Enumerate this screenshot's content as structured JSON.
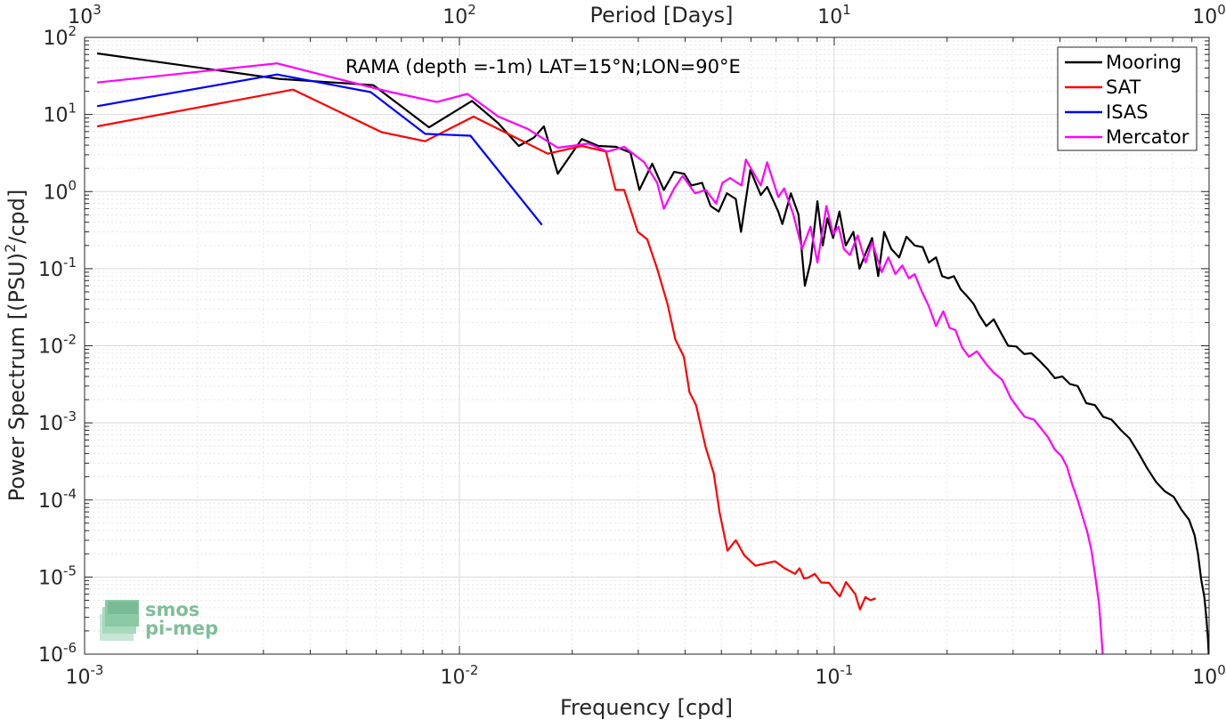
{
  "chart_data": {
    "type": "line",
    "annotation": "RAMA (depth =-1m) LAT=15°N;LON=90°E",
    "xlabel": "Frequency [cpd]",
    "ylabel": "Power Spectrum [(PSU)",
    "ylabel_sup": "2",
    "ylabel_tail": "/cpd]",
    "top_xlabel": "Period [Days]",
    "xscale": "log",
    "yscale": "log",
    "xlim": [
      0.001,
      1
    ],
    "ylim": [
      1e-06,
      100
    ],
    "grid": true,
    "minor_grid": true,
    "legend_position": "top-right",
    "x_ticks": [
      {
        "value": 0.001,
        "base": "10",
        "exp": "-3"
      },
      {
        "value": 0.01,
        "base": "10",
        "exp": "-2"
      },
      {
        "value": 0.1,
        "base": "10",
        "exp": "-1"
      },
      {
        "value": 1,
        "base": "10",
        "exp": "0"
      }
    ],
    "top_ticks": [
      {
        "freq": 0.001,
        "base": "10",
        "exp": "3"
      },
      {
        "freq": 0.01,
        "base": "10",
        "exp": "2"
      },
      {
        "freq": 0.1,
        "base": "10",
        "exp": "1"
      },
      {
        "freq": 1,
        "base": "10",
        "exp": "0"
      }
    ],
    "y_ticks": [
      {
        "value": 100,
        "base": "10",
        "exp": "2"
      },
      {
        "value": 10,
        "base": "10",
        "exp": "1"
      },
      {
        "value": 1,
        "base": "10",
        "exp": "0"
      },
      {
        "value": 0.1,
        "base": "10",
        "exp": "-1"
      },
      {
        "value": 0.01,
        "base": "10",
        "exp": "-2"
      },
      {
        "value": 0.001,
        "base": "10",
        "exp": "-3"
      },
      {
        "value": 0.0001,
        "base": "10",
        "exp": "-4"
      },
      {
        "value": 1e-05,
        "base": "10",
        "exp": "-5"
      },
      {
        "value": 1e-06,
        "base": "10",
        "exp": "-6"
      }
    ],
    "series": [
      {
        "name": "Mooring",
        "color": "#000000",
        "points": [
          [
            0.00108,
            62
          ],
          [
            0.0033,
            29
          ],
          [
            0.0059,
            24
          ],
          [
            0.0083,
            6.8
          ],
          [
            0.0108,
            15
          ],
          [
            0.0127,
            7.7
          ],
          [
            0.0144,
            3.9
          ],
          [
            0.0158,
            5
          ],
          [
            0.0168,
            7
          ],
          [
            0.0183,
            1.7
          ],
          [
            0.0212,
            4.8
          ],
          [
            0.0235,
            3.9
          ],
          [
            0.0262,
            3.8
          ],
          [
            0.0286,
            3.2
          ],
          [
            0.0302,
            1.05
          ],
          [
            0.0327,
            2.3
          ],
          [
            0.0351,
            1.05
          ],
          [
            0.0374,
            1.8
          ],
          [
            0.0398,
            1.7
          ],
          [
            0.0416,
            1.2
          ],
          [
            0.0444,
            1.3
          ],
          [
            0.0468,
            0.65
          ],
          [
            0.0492,
            0.55
          ],
          [
            0.0517,
            0.95
          ],
          [
            0.0546,
            0.8
          ],
          [
            0.0564,
            0.3
          ],
          [
            0.0597,
            1.9
          ],
          [
            0.0637,
            0.9
          ],
          [
            0.0662,
            1.15
          ],
          [
            0.0709,
            0.55
          ],
          [
            0.0727,
            0.38
          ],
          [
            0.0766,
            0.95
          ],
          [
            0.0803,
            0.5
          ],
          [
            0.0835,
            0.06
          ],
          [
            0.0864,
            0.12
          ],
          [
            0.0902,
            0.75
          ],
          [
            0.0932,
            0.2
          ],
          [
            0.0958,
            0.45
          ],
          [
            0.0993,
            0.25
          ],
          [
            0.1032,
            0.55
          ],
          [
            0.1073,
            0.2
          ],
          [
            0.1125,
            0.3
          ],
          [
            0.1168,
            0.1
          ],
          [
            0.1214,
            0.16
          ],
          [
            0.1262,
            0.25
          ],
          [
            0.131,
            0.08
          ],
          [
            0.1359,
            0.3
          ],
          [
            0.142,
            0.18
          ],
          [
            0.149,
            0.14
          ],
          [
            0.1558,
            0.26
          ],
          [
            0.1639,
            0.2
          ],
          [
            0.1721,
            0.19
          ],
          [
            0.1789,
            0.12
          ],
          [
            0.1869,
            0.14
          ],
          [
            0.194,
            0.08
          ],
          [
            0.2015,
            0.075
          ],
          [
            0.2086,
            0.08
          ],
          [
            0.2174,
            0.054
          ],
          [
            0.2262,
            0.044
          ],
          [
            0.2353,
            0.035
          ],
          [
            0.2438,
            0.025
          ],
          [
            0.2545,
            0.018
          ],
          [
            0.2663,
            0.022
          ],
          [
            0.2778,
            0.015
          ],
          [
            0.291,
            0.01
          ],
          [
            0.3061,
            0.0098
          ],
          [
            0.3213,
            0.0078
          ],
          [
            0.3357,
            0.008
          ],
          [
            0.3517,
            0.0065
          ],
          [
            0.3703,
            0.005
          ],
          [
            0.3878,
            0.0038
          ],
          [
            0.4061,
            0.004
          ],
          [
            0.4252,
            0.0032
          ],
          [
            0.4461,
            0.003
          ],
          [
            0.4704,
            0.0018
          ],
          [
            0.4956,
            0.0017
          ],
          [
            0.5219,
            0.0012
          ],
          [
            0.5494,
            0.0011
          ],
          [
            0.5826,
            0.0008
          ],
          [
            0.6132,
            0.00063
          ],
          [
            0.6476,
            0.00041
          ],
          [
            0.6832,
            0.00026
          ],
          [
            0.7227,
            0.00017
          ],
          [
            0.7616,
            0.00013
          ],
          [
            0.8044,
            0.00011
          ],
          [
            0.8434,
            7.5e-05
          ],
          [
            0.8849,
            5.5e-05
          ],
          [
            0.9146,
            3.5e-05
          ],
          [
            0.934,
            2e-05
          ],
          [
            0.9528,
            9.2e-06
          ],
          [
            0.9712,
            5.5e-06
          ],
          [
            0.9833,
            3e-06
          ],
          [
            0.9928,
            1.6e-06
          ],
          [
            0.998,
            1e-06
          ]
        ]
      },
      {
        "name": "SAT",
        "color": "#ff0000",
        "points": [
          [
            0.00108,
            7
          ],
          [
            0.0036,
            21
          ],
          [
            0.0062,
            5.9
          ],
          [
            0.0081,
            4.5
          ],
          [
            0.0109,
            9.4
          ],
          [
            0.0172,
            3.1
          ],
          [
            0.0212,
            3.9
          ],
          [
            0.0246,
            3.3
          ],
          [
            0.0261,
            1.05
          ],
          [
            0.0275,
            1.05
          ],
          [
            0.0299,
            0.3
          ],
          [
            0.0317,
            0.24
          ],
          [
            0.0337,
            0.1
          ],
          [
            0.0359,
            0.035
          ],
          [
            0.0377,
            0.012
          ],
          [
            0.0397,
            0.0072
          ],
          [
            0.0411,
            0.0025
          ],
          [
            0.0428,
            0.0017
          ],
          [
            0.0454,
            0.00048
          ],
          [
            0.0477,
            0.00022
          ],
          [
            0.0494,
            7e-05
          ],
          [
            0.0519,
            2.2e-05
          ],
          [
            0.0546,
            3e-05
          ],
          [
            0.0576,
            1.9e-05
          ],
          [
            0.0616,
            1.4e-05
          ],
          [
            0.0655,
            1.5e-05
          ],
          [
            0.0695,
            1.6e-05
          ],
          [
            0.0737,
            1.3e-05
          ],
          [
            0.0786,
            1.1e-05
          ],
          [
            0.0808,
            1.3e-05
          ],
          [
            0.083,
            9.6e-06
          ],
          [
            0.0852,
            9.8e-06
          ],
          [
            0.0887,
            1.1e-05
          ],
          [
            0.0923,
            8.5e-06
          ],
          [
            0.0968,
            8.4e-06
          ],
          [
            0.1002,
            6.7e-06
          ],
          [
            0.1035,
            5.6e-06
          ],
          [
            0.1075,
            8.6e-06
          ],
          [
            0.1105,
            7.2e-06
          ],
          [
            0.1138,
            6e-06
          ],
          [
            0.1171,
            3.8e-06
          ],
          [
            0.1211,
            5.5e-06
          ],
          [
            0.1249,
            5e-06
          ],
          [
            0.1289,
            5.3e-06
          ]
        ]
      },
      {
        "name": "ISAS",
        "color": "#0000ff",
        "points": [
          [
            0.00108,
            12.8
          ],
          [
            0.00326,
            33
          ],
          [
            0.0058,
            19.5
          ],
          [
            0.0081,
            5.6
          ],
          [
            0.0107,
            5.3
          ],
          [
            0.0166,
            0.37
          ]
        ]
      },
      {
        "name": "Mercator",
        "color": "#ff00ff",
        "points": [
          [
            0.00108,
            26
          ],
          [
            0.00326,
            46
          ],
          [
            0.0064,
            20
          ],
          [
            0.0087,
            14.5
          ],
          [
            0.0105,
            18.5
          ],
          [
            0.0127,
            9.4
          ],
          [
            0.0152,
            6.5
          ],
          [
            0.0183,
            3.7
          ],
          [
            0.0221,
            4.2
          ],
          [
            0.0248,
            3.3
          ],
          [
            0.0275,
            3.8
          ],
          [
            0.0311,
            2.4
          ],
          [
            0.0337,
            1.3
          ],
          [
            0.0351,
            0.6
          ],
          [
            0.0374,
            1.1
          ],
          [
            0.0394,
            1.6
          ],
          [
            0.0425,
            0.95
          ],
          [
            0.0454,
            1.05
          ],
          [
            0.0484,
            0.7
          ],
          [
            0.0503,
            1.3
          ],
          [
            0.0527,
            1.5
          ],
          [
            0.0566,
            1.2
          ],
          [
            0.0581,
            2.6
          ],
          [
            0.0637,
            1.2
          ],
          [
            0.0662,
            2.4
          ],
          [
            0.0709,
            0.85
          ],
          [
            0.0735,
            1.1
          ],
          [
            0.0778,
            0.5
          ],
          [
            0.0821,
            0.18
          ],
          [
            0.0864,
            0.35
          ],
          [
            0.0902,
            0.12
          ],
          [
            0.0953,
            0.65
          ],
          [
            0.0993,
            0.28
          ],
          [
            0.1027,
            0.35
          ],
          [
            0.1061,
            0.18
          ],
          [
            0.1101,
            0.15
          ],
          [
            0.1155,
            0.27
          ],
          [
            0.1212,
            0.12
          ],
          [
            0.1262,
            0.22
          ],
          [
            0.1339,
            0.09
          ],
          [
            0.1394,
            0.14
          ],
          [
            0.1456,
            0.085
          ],
          [
            0.1519,
            0.11
          ],
          [
            0.1581,
            0.075
          ],
          [
            0.1639,
            0.085
          ],
          [
            0.1714,
            0.05
          ],
          [
            0.1786,
            0.033
          ],
          [
            0.1869,
            0.018
          ],
          [
            0.1953,
            0.028
          ],
          [
            0.2032,
            0.017
          ],
          [
            0.2105,
            0.016
          ],
          [
            0.2193,
            0.0095
          ],
          [
            0.2287,
            0.0072
          ],
          [
            0.2402,
            0.0085
          ],
          [
            0.2534,
            0.0059
          ],
          [
            0.2661,
            0.0045
          ],
          [
            0.2807,
            0.0036
          ],
          [
            0.2957,
            0.0021
          ],
          [
            0.3108,
            0.0015
          ],
          [
            0.3219,
            0.0012
          ],
          [
            0.3411,
            0.0011
          ],
          [
            0.3539,
            0.00088
          ],
          [
            0.3717,
            0.00065
          ],
          [
            0.3877,
            0.00045
          ],
          [
            0.4038,
            0.00037
          ],
          [
            0.4178,
            0.00027
          ],
          [
            0.4312,
            0.00016
          ],
          [
            0.4467,
            9.8e-05
          ],
          [
            0.4602,
            6e-05
          ],
          [
            0.4734,
            3.8e-05
          ],
          [
            0.4856,
            2.2e-05
          ],
          [
            0.4983,
            9.5e-06
          ],
          [
            0.5084,
            4.6e-06
          ],
          [
            0.5152,
            2e-06
          ],
          [
            0.5203,
            1e-06
          ]
        ]
      }
    ],
    "logo": [
      "smos",
      "pi-mep"
    ]
  }
}
